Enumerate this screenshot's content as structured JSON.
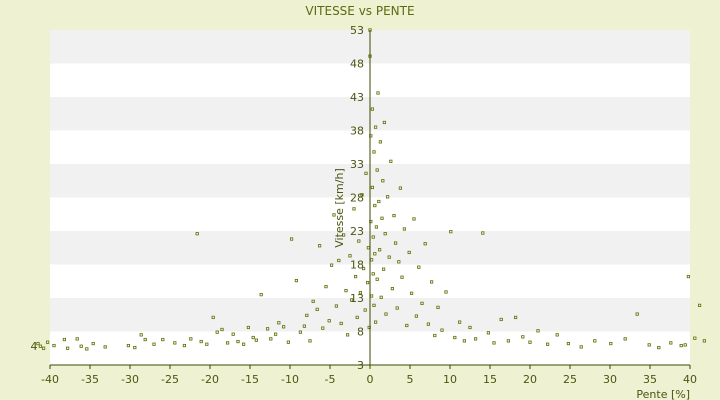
{
  "chart_data": {
    "type": "scatter",
    "title": "VITESSE vs PENTE",
    "xlabel": "Pente [%]",
    "ylabel": "Vitesse [km/h]",
    "xlim": [
      -40,
      40
    ],
    "ylim": [
      3,
      53
    ],
    "x_ticks": [
      -40,
      -35,
      -30,
      -25,
      -20,
      -15,
      -10,
      -5,
      0,
      5,
      10,
      15,
      20,
      25,
      30,
      35,
      40
    ],
    "y_ticks": [
      3,
      8,
      13,
      18,
      23,
      28,
      33,
      38,
      43,
      48,
      53
    ],
    "grid": "alternating horizontal bands",
    "colors": {
      "background": "#eef2d2",
      "band_light": "#ffffff",
      "band_dark": "#f1f1f1",
      "axis": "#3c4a00",
      "point": "#5e6e08"
    },
    "annotations": [
      "4"
    ],
    "points": [
      [
        -41.5,
        6.2
      ],
      [
        -41.2,
        5.8
      ],
      [
        -40.8,
        5.5
      ],
      [
        -40.3,
        6.4
      ],
      [
        -39.5,
        5.9
      ],
      [
        -38.2,
        6.8
      ],
      [
        -37.8,
        5.5
      ],
      [
        -36.6,
        6.9
      ],
      [
        -36.1,
        5.8
      ],
      [
        -35.4,
        5.4
      ],
      [
        -34.6,
        6.2
      ],
      [
        -33.1,
        5.7
      ],
      [
        -30.2,
        5.9
      ],
      [
        -29.4,
        5.6
      ],
      [
        -28.6,
        7.5
      ],
      [
        -28.1,
        6.8
      ],
      [
        -27.0,
        6.1
      ],
      [
        -25.9,
        6.8
      ],
      [
        -24.4,
        6.3
      ],
      [
        -23.2,
        5.9
      ],
      [
        -22.4,
        6.9
      ],
      [
        -21.6,
        22.6
      ],
      [
        -21.1,
        6.5
      ],
      [
        -20.4,
        6.1
      ],
      [
        -19.6,
        10.1
      ],
      [
        -19.1,
        7.9
      ],
      [
        -18.5,
        8.3
      ],
      [
        -17.8,
        6.3
      ],
      [
        -17.1,
        7.6
      ],
      [
        -16.5,
        6.5
      ],
      [
        -15.8,
        6.1
      ],
      [
        -15.2,
        8.6
      ],
      [
        -14.6,
        7.1
      ],
      [
        -14.2,
        6.7
      ],
      [
        -13.6,
        13.5
      ],
      [
        -12.8,
        8.4
      ],
      [
        -12.4,
        6.9
      ],
      [
        -11.8,
        7.6
      ],
      [
        -11.4,
        9.3
      ],
      [
        -10.8,
        8.7
      ],
      [
        -10.2,
        6.4
      ],
      [
        -9.8,
        21.8
      ],
      [
        -9.2,
        15.6
      ],
      [
        -8.7,
        7.9
      ],
      [
        -8.2,
        8.8
      ],
      [
        -7.9,
        10.4
      ],
      [
        -7.5,
        6.6
      ],
      [
        -7.1,
        12.5
      ],
      [
        -6.6,
        11.3
      ],
      [
        -6.3,
        20.8
      ],
      [
        -5.9,
        8.5
      ],
      [
        -5.5,
        14.7
      ],
      [
        -5.1,
        9.6
      ],
      [
        -4.8,
        17.9
      ],
      [
        -4.5,
        25.4
      ],
      [
        -4.2,
        11.8
      ],
      [
        -3.9,
        18.6
      ],
      [
        -3.6,
        9.2
      ],
      [
        -3.3,
        22.4
      ],
      [
        -3.0,
        14.1
      ],
      [
        -2.8,
        7.5
      ],
      [
        -2.5,
        19.3
      ],
      [
        -2.3,
        12.7
      ],
      [
        -2.0,
        26.3
      ],
      [
        -1.8,
        16.2
      ],
      [
        -1.6,
        10.1
      ],
      [
        -1.4,
        21.5
      ],
      [
        -1.2,
        13.8
      ],
      [
        -1.0,
        28.4
      ],
      [
        -0.8,
        17.4
      ],
      [
        -0.6,
        11.2
      ],
      [
        -0.5,
        31.6
      ],
      [
        -0.3,
        15.3
      ],
      [
        -0.2,
        20.5
      ],
      [
        -0.1,
        8.6
      ],
      [
        0.0,
        53.0
      ],
      [
        0.0,
        49.1
      ],
      [
        0.1,
        37.2
      ],
      [
        0.1,
        24.4
      ],
      [
        0.2,
        18.7
      ],
      [
        0.2,
        13.3
      ],
      [
        0.3,
        41.2
      ],
      [
        0.3,
        29.5
      ],
      [
        0.4,
        22.1
      ],
      [
        0.4,
        16.6
      ],
      [
        0.5,
        34.8
      ],
      [
        0.5,
        11.9
      ],
      [
        0.6,
        26.8
      ],
      [
        0.6,
        19.6
      ],
      [
        0.7,
        38.5
      ],
      [
        0.7,
        9.4
      ],
      [
        0.8,
        23.6
      ],
      [
        0.9,
        32.1
      ],
      [
        0.9,
        15.8
      ],
      [
        1.0,
        43.6
      ],
      [
        1.1,
        27.4
      ],
      [
        1.2,
        20.2
      ],
      [
        1.3,
        36.3
      ],
      [
        1.4,
        13.1
      ],
      [
        1.5,
        24.9
      ],
      [
        1.6,
        30.5
      ],
      [
        1.7,
        17.3
      ],
      [
        1.8,
        39.2
      ],
      [
        1.9,
        22.6
      ],
      [
        2.0,
        10.6
      ],
      [
        2.2,
        28.1
      ],
      [
        2.4,
        19.1
      ],
      [
        2.6,
        33.4
      ],
      [
        2.8,
        14.4
      ],
      [
        3.0,
        25.3
      ],
      [
        3.2,
        21.2
      ],
      [
        3.4,
        11.5
      ],
      [
        3.6,
        18.4
      ],
      [
        3.8,
        29.4
      ],
      [
        4.0,
        16.1
      ],
      [
        4.3,
        23.3
      ],
      [
        4.6,
        8.9
      ],
      [
        4.9,
        19.8
      ],
      [
        5.2,
        13.7
      ],
      [
        5.5,
        24.8
      ],
      [
        5.8,
        10.3
      ],
      [
        6.1,
        17.6
      ],
      [
        6.5,
        12.2
      ],
      [
        6.9,
        21.1
      ],
      [
        7.3,
        9.1
      ],
      [
        7.7,
        15.4
      ],
      [
        8.1,
        7.4
      ],
      [
        8.5,
        11.6
      ],
      [
        9.0,
        8.2
      ],
      [
        9.5,
        13.9
      ],
      [
        10.1,
        22.9
      ],
      [
        10.6,
        7.1
      ],
      [
        11.2,
        9.4
      ],
      [
        11.8,
        6.6
      ],
      [
        12.5,
        8.6
      ],
      [
        13.2,
        6.9
      ],
      [
        14.1,
        22.7
      ],
      [
        14.8,
        7.8
      ],
      [
        15.5,
        6.3
      ],
      [
        16.4,
        9.8
      ],
      [
        17.3,
        6.6
      ],
      [
        18.2,
        10.1
      ],
      [
        19.1,
        7.2
      ],
      [
        20.0,
        6.4
      ],
      [
        21.0,
        8.1
      ],
      [
        22.2,
        6.1
      ],
      [
        23.4,
        7.5
      ],
      [
        24.8,
        6.2
      ],
      [
        26.4,
        5.7
      ],
      [
        28.1,
        6.6
      ],
      [
        30.1,
        6.2
      ],
      [
        31.9,
        6.9
      ],
      [
        33.4,
        10.6
      ],
      [
        34.9,
        6.0
      ],
      [
        36.1,
        5.6
      ],
      [
        37.6,
        6.3
      ],
      [
        38.9,
        5.9
      ],
      [
        39.4,
        6.0
      ],
      [
        39.8,
        16.2
      ],
      [
        40.6,
        7.0
      ],
      [
        41.2,
        11.9
      ],
      [
        41.8,
        6.6
      ]
    ]
  }
}
